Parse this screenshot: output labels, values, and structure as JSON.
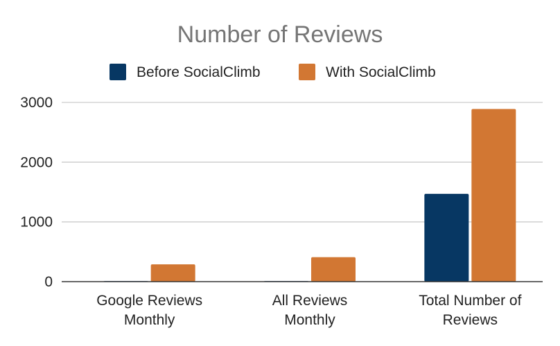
{
  "chart_data": {
    "type": "bar",
    "title": "Number of Reviews",
    "categories": [
      [
        "Google Reviews",
        "Monthly"
      ],
      [
        "All Reviews",
        "Monthly"
      ],
      [
        "Total Number of",
        "Reviews"
      ]
    ],
    "series": [
      {
        "name": "Before SocialClimb",
        "color": "#073763",
        "values": [
          10,
          10,
          1470
        ]
      },
      {
        "name": "With SocialClimb",
        "color": "#d27733",
        "values": [
          290,
          410,
          2890
        ]
      }
    ],
    "ylim": [
      0,
      3000
    ],
    "yticks": [
      0,
      1000,
      2000,
      3000
    ],
    "grid": true,
    "legend_position": "top"
  }
}
